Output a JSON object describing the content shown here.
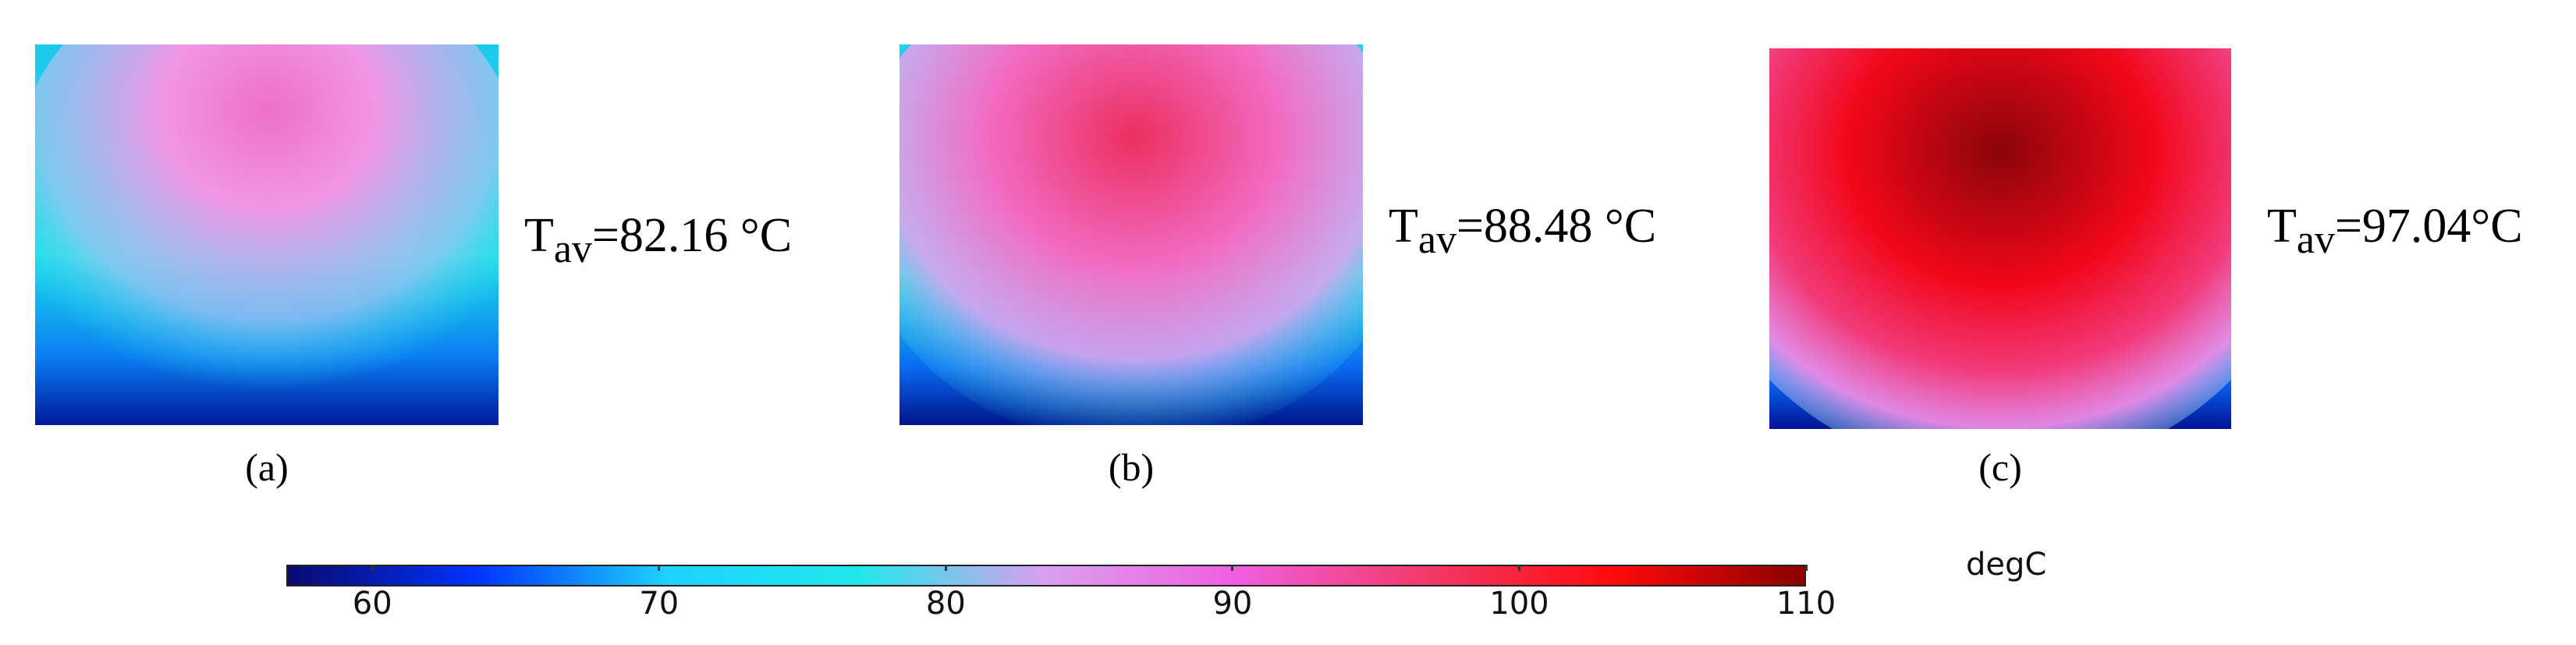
{
  "panels": [
    {
      "label": "(a)",
      "tav_symbol": "T",
      "tav_sub": "av",
      "tav_value": "=82.16 °C",
      "hot_color": "#ee6fc8",
      "mid_color": "#f196e6"
    },
    {
      "label": "(b)",
      "tav_symbol": "T",
      "tav_sub": "av",
      "tav_value": "=88.48 °C",
      "hot_color": "#ec2f5f",
      "mid_color": "#f26bc2"
    },
    {
      "label": "(c)",
      "tav_symbol": "T",
      "tav_sub": "av",
      "tav_value": "=97.04°C",
      "hot_color": "#8a0508",
      "mid_color": "#f2071a"
    }
  ],
  "colorbar": {
    "unit": "degC",
    "min": 57,
    "max": 110,
    "ticks": [
      "60",
      "70",
      "80",
      "90",
      "100",
      "110"
    ],
    "tick_values": [
      60,
      70,
      80,
      90,
      100,
      110
    ],
    "colors": [
      "#0a0a6e",
      "#0033ff",
      "#1ed2ff",
      "#1fe8ea",
      "#d9a0ee",
      "#f05ee0",
      "#f23a6a",
      "#ff0a0a",
      "#8a0000"
    ]
  }
}
